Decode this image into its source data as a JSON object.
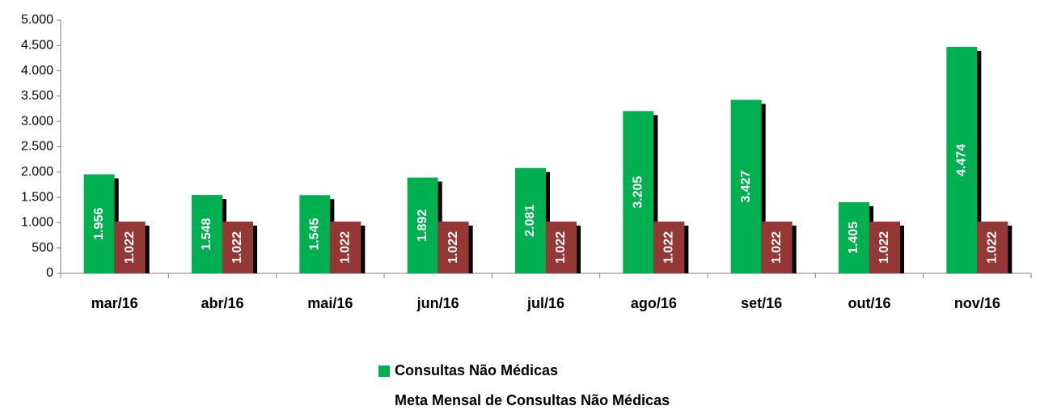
{
  "chart_data": {
    "type": "bar",
    "categories": [
      "mar/16",
      "abr/16",
      "mai/16",
      "jun/16",
      "jul/16",
      "ago/16",
      "set/16",
      "out/16",
      "nov/16"
    ],
    "series": [
      {
        "name": "Consultas Não Médicas",
        "color": "#00b050",
        "values": [
          1956,
          1548,
          1545,
          1892,
          2081,
          3205,
          3427,
          1405,
          4474
        ],
        "value_labels": [
          "1.956",
          "1.548",
          "1.545",
          "1.892",
          "2.081",
          "3.205",
          "3.427",
          "1.405",
          "4.474"
        ]
      },
      {
        "name": "Meta Mensal de Consultas Não Médicas",
        "color": "#953735",
        "values": [
          1022,
          1022,
          1022,
          1022,
          1022,
          1022,
          1022,
          1022,
          1022
        ],
        "value_labels": [
          "1.022",
          "1.022",
          "1.022",
          "1.022",
          "1.022",
          "1.022",
          "1.022",
          "1.022",
          "1.022"
        ]
      }
    ],
    "ylim": [
      0,
      5000
    ],
    "yticks": [
      0,
      500,
      {
        "value": 1000,
        "label": "1.000"
      },
      {
        "value": 1500,
        "label": "1.500"
      },
      {
        "value": 2000,
        "label": "2.000"
      },
      {
        "value": 2500,
        "label": "2.500"
      },
      {
        "value": 3000,
        "label": "3.000"
      },
      {
        "value": 3500,
        "label": "3.500"
      },
      {
        "value": 4000,
        "label": "4.000"
      },
      {
        "value": 4500,
        "label": "4.500"
      },
      {
        "value": 5000,
        "label": "5.000"
      }
    ],
    "grid": false
  }
}
